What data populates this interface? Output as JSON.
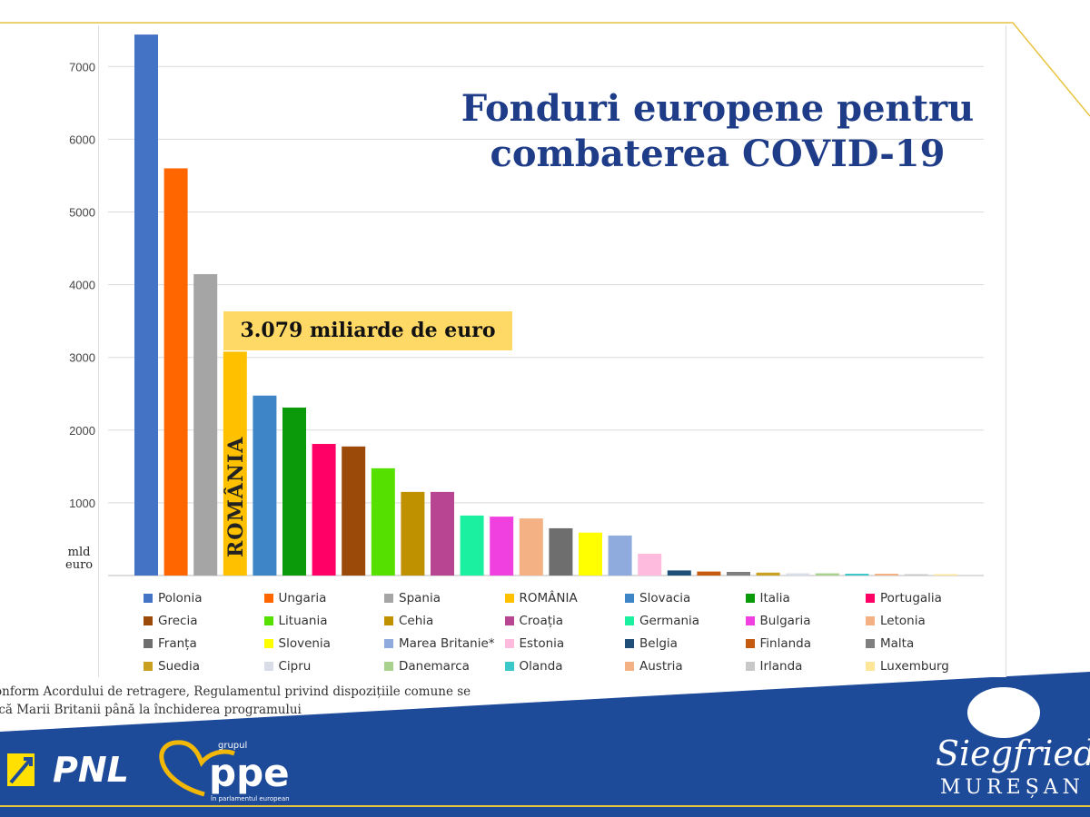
{
  "chart_data": {
    "type": "bar",
    "title": "Fonduri europene pentru combaterea COVID-19",
    "ylabel": "mld euro",
    "ylim": [
      0,
      7500
    ],
    "yticks": [
      1000,
      2000,
      3000,
      4000,
      5000,
      6000,
      7000
    ],
    "grid": true,
    "legend_position": "bottom",
    "categories": [
      "Polonia",
      "Ungaria",
      "Spania",
      "ROMÂNIA",
      "Slovacia",
      "Italia",
      "Portugalia",
      "Grecia",
      "Lituania",
      "Cehia",
      "Croația",
      "Germania",
      "Bulgaria",
      "Letonia",
      "Franța",
      "Slovenia",
      "Marea Britanie*",
      "Estonia",
      "Belgia",
      "Finlanda",
      "Malta",
      "Suedia",
      "Cipru",
      "Danemarca",
      "Olanda",
      "Austria",
      "Irlanda",
      "Luxemburg"
    ],
    "values": [
      7440,
      5600,
      4145,
      3079,
      2475,
      2310,
      1810,
      1775,
      1475,
      1150,
      1150,
      825,
      810,
      785,
      650,
      590,
      550,
      300,
      70,
      55,
      50,
      40,
      30,
      30,
      25,
      25,
      10,
      10
    ],
    "colors": [
      "#4472c4",
      "#ff6600",
      "#a5a5a5",
      "#ffc000",
      "#3d85c6",
      "#0a9a0a",
      "#ff0066",
      "#9c4a0a",
      "#55e000",
      "#bf9000",
      "#b84592",
      "#1af0a0",
      "#f040e0",
      "#f4b183",
      "#6e6e6e",
      "#ffff00",
      "#8faadc",
      "#ffbbdd",
      "#1f4e79",
      "#c55a11",
      "#7f7f7f",
      "#c9a020",
      "#d9dde8",
      "#a9d18e",
      "#3cc8c8",
      "#f4b183",
      "#c8c8c8",
      "#ffe699"
    ],
    "bar_label": "ROMÂNIA",
    "annotation": "3.079 miliarde de euro"
  },
  "ylabel_lines": [
    "mld",
    "euro"
  ],
  "footnote": [
    "onform Acordului de retragere, Regulamentul privind dispozițiile comune se",
    "ică Marii Britanii până la închiderea programului"
  ],
  "logos": {
    "pnl": "PNL",
    "ppe": "ppe",
    "ppe_top": "grupul",
    "ppe_sub": "în parlamentul european",
    "name1": "Siegfried",
    "name2": "MUREȘAN"
  },
  "colors": {
    "title": "#1f3c88",
    "footer": "#1e4a9a",
    "gold": "#e8c440"
  }
}
